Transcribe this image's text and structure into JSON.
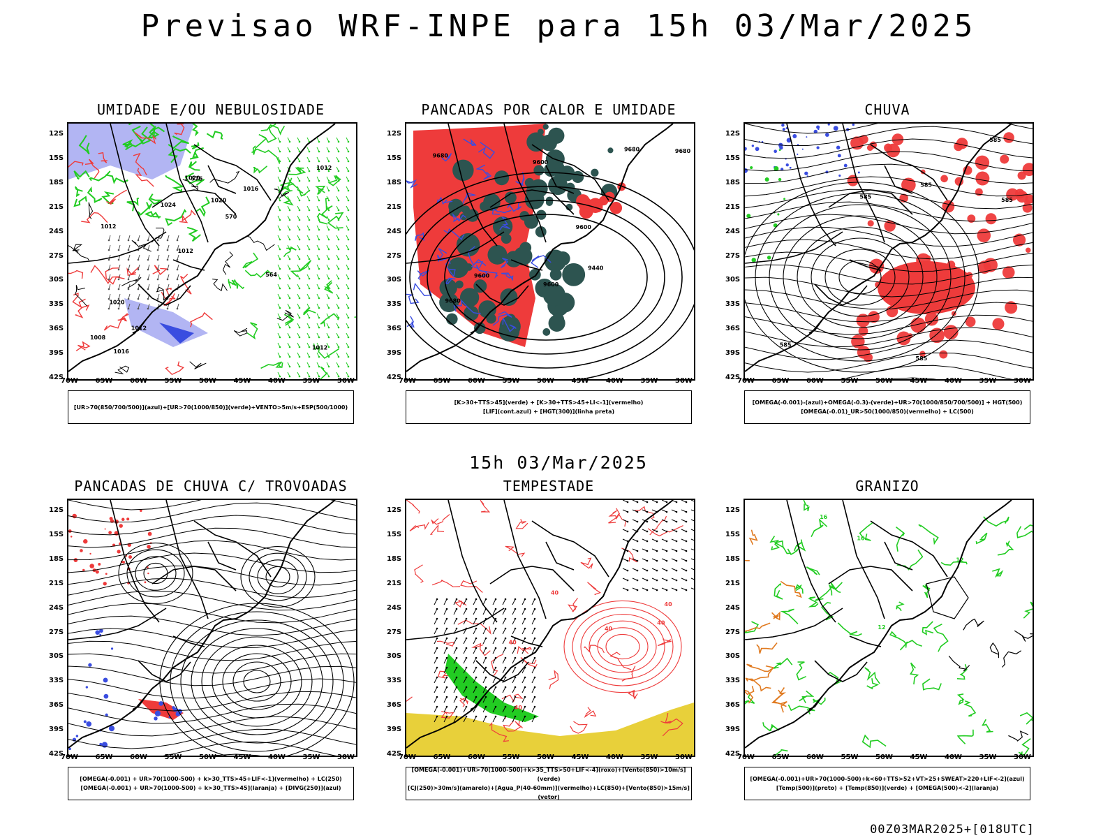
{
  "header": {
    "title": "Previsao WRF-INPE  para 15h 03/Mar/2025"
  },
  "mid_title": "15h 03/Mar/2025",
  "footer": "00Z03MAR2025+[018UTC]",
  "axes": {
    "lat_labels": [
      "12S",
      "15S",
      "18S",
      "21S",
      "24S",
      "27S",
      "30S",
      "33S",
      "36S",
      "39S",
      "42S"
    ],
    "lon_labels": [
      "70W",
      "65W",
      "60W",
      "55W",
      "50W",
      "45W",
      "40W",
      "35W",
      "30W"
    ]
  },
  "panels": [
    {
      "title": "UMIDADE E/OU NEBULOSIDADE",
      "legend": [
        "[UR>70(850/700/500)](azul)+[UR>70(1000/850)](verde)+VENTO>5m/s+ESP(500/1000)"
      ],
      "contour_labels": [
        "1012",
        "1012",
        "1012",
        "1012",
        "1016",
        "1016",
        "1020",
        "1020",
        "1020",
        "1024",
        "1008",
        "1012",
        "576",
        "570",
        "564"
      ]
    },
    {
      "title": "PANCADAS POR CALOR E UMIDADE",
      "legend": [
        "[K>30+TTS>45](verde) + [K>30+TTS>45+LI<-1](vermelho)",
        "[LIF](cont.azul) + [HGT(300)](linha preta)"
      ],
      "contour_labels": [
        "9600",
        "9600",
        "9600",
        "9600",
        "9680",
        "9680",
        "9680",
        "9680",
        "9440"
      ]
    },
    {
      "title": "CHUVA",
      "legend": [
        "[OMEGA(-0.001)-(azul)+OMEGA(-0.3)-(verde)+UR>70(1000/850/700/500)] + HGT(500)",
        "[OMEGA(-0.01)_UR>50(1000/850)(vermelho) + LC(500)"
      ],
      "contour_labels": [
        "585",
        "585",
        "585",
        "585",
        "585",
        "585"
      ]
    },
    {
      "title": "PANCADAS DE CHUVA C/ TROVOADAS",
      "legend": [
        "[OMEGA(-0.001) + UR>70(1000-500) + k>30_TTS>45+LIF<-1](vermelho) + LC(250)",
        "[OMEGA(-0.001) + UR>70(1000-500) + k>30_TTS>45](laranja) + [DIVG(250)](azul)"
      ],
      "contour_labels": []
    },
    {
      "title": "TEMPESTADE",
      "legend": [
        "[OMEGA(-0.001)+UR>70(1000-500)+k>35_TTS>50+LIF<-4](roxo)+[Vento(850)>10m/s](verde)",
        "[CJ(250)>30m/s](amarelo)+[Agua_P(40-60mm)](vermelho)+LC(850)+[Vento(850)>15m/s](vetor)"
      ],
      "contour_labels": [
        "40",
        "40",
        "40",
        "40",
        "40",
        "40"
      ]
    },
    {
      "title": "GRANIZO",
      "legend": [
        "[OMEGA(-0.001)+UR>70(1000-500)+k<60+TTS>52+VT>25+SWEAT>220+LIF<-2](azul)",
        "[Temp(500)](preto) + [Temp(850)](verde) + [OMEGA(500)<-2](laranja)"
      ],
      "contour_labels": [
        "12",
        "12",
        "16",
        "16"
      ]
    }
  ],
  "colors": {
    "blue": "#3a4de0",
    "lightblue": "#9fa3f0",
    "green": "#22cc22",
    "red": "#ee3b3b",
    "darkteal": "#2d5450",
    "yellow": "#e8d03a",
    "orange": "#e07a20",
    "purple": "#8a2be2"
  }
}
